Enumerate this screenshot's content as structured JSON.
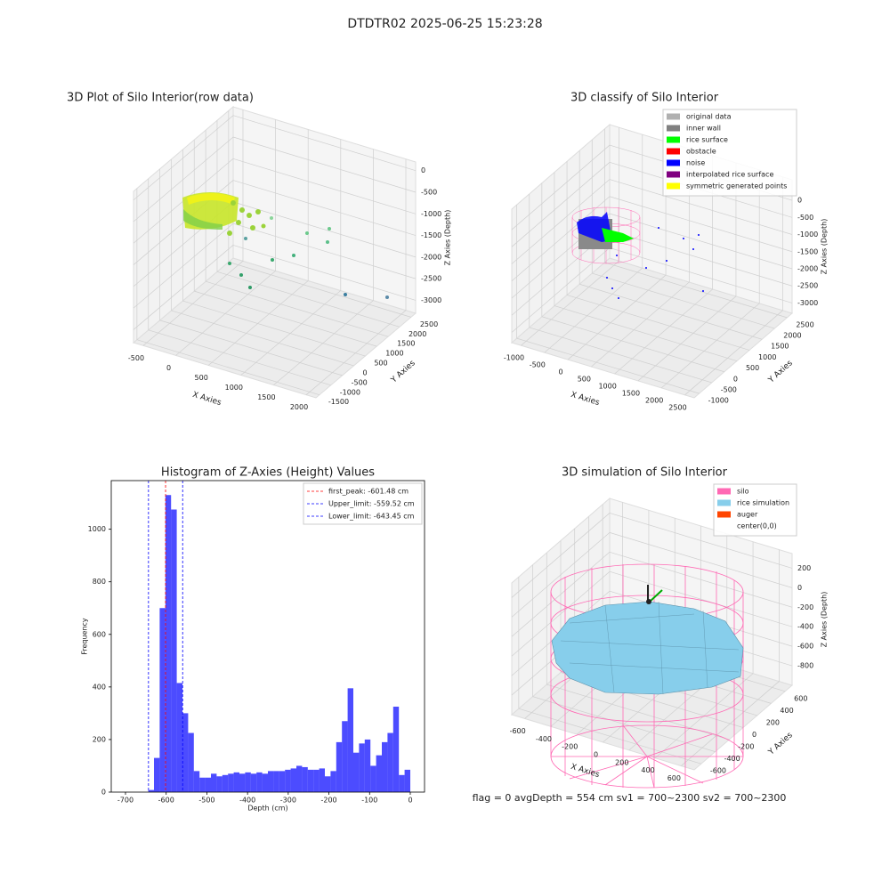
{
  "suptitle": "DTDTR02 2025-06-25 15:23:28",
  "footer": "flag = 0     avgDepth = 554 cm  sv1 = 700~2300  sv2 = 700~2300",
  "chart_data": [
    {
      "type": "scatter3d",
      "title": "3D Plot of Silo Interior(row data)",
      "xlabel": "X Axies",
      "ylabel": "Y Axies",
      "zlabel": "Z Axies (Depth)",
      "xlim": [
        -650,
        2150
      ],
      "ylim": [
        -1650,
        2700
      ],
      "zlim": [
        -3300,
        200
      ],
      "xticks": [
        -500,
        0,
        500,
        1000,
        1500,
        2000
      ],
      "yticks": [
        -1500,
        -1000,
        -500,
        0,
        500,
        1000,
        1500,
        2000,
        2500
      ],
      "zticks": [
        0,
        -500,
        -1000,
        -1500,
        -2000,
        -2500,
        -3000
      ],
      "grid": true
    },
    {
      "type": "scatter3d",
      "title": "3D classify of Silo Interior",
      "xlabel": "X Axies",
      "ylabel": "Y Axies",
      "zlabel": "Z Axies (Depth)",
      "xlim": [
        -1200,
        2700
      ],
      "ylim": [
        -1200,
        2700
      ],
      "zlim": [
        -3300,
        600
      ],
      "xticks": [
        -1000,
        -500,
        0,
        500,
        1000,
        1500,
        2000,
        2500
      ],
      "yticks": [
        -1000,
        -500,
        0,
        500,
        1000,
        1500,
        2000,
        2500
      ],
      "zticks": [
        0,
        -500,
        -1000,
        -1500,
        -2000,
        -2500,
        -3000
      ],
      "grid": true,
      "legend_corner": "upper right",
      "legend": [
        {
          "name": "original data",
          "color": "#b0b0b0"
        },
        {
          "name": "inner wall",
          "color": "#808080"
        },
        {
          "name": "rice surface",
          "color": "#00ff00"
        },
        {
          "name": "obstacle",
          "color": "#ff0000"
        },
        {
          "name": "noise",
          "color": "#0000ff"
        },
        {
          "name": "interpolated rice surface",
          "color": "#800080"
        },
        {
          "name": "symmetric generated points",
          "color": "#ffff00"
        }
      ]
    },
    {
      "type": "histogram",
      "title": "Histogram of Z-Axies (Height) Values",
      "xlabel": "Depth (cm)",
      "ylabel": "Frequency",
      "color": "#0000ff",
      "alpha": 0.7,
      "bins": [
        -644,
        -630,
        -616,
        -602,
        -588,
        -574,
        -560,
        -546,
        -532,
        -518,
        -504,
        -490,
        -476,
        -462,
        -448,
        -434,
        -420,
        -406,
        -392,
        -378,
        -364,
        -350,
        -336,
        -322,
        -308,
        -294,
        -280,
        -266,
        -252,
        -238,
        -224,
        -210,
        -196,
        -182,
        -168,
        -154,
        -140,
        -126,
        -112,
        -98,
        -84,
        -70,
        -56,
        -42,
        -28,
        -14,
        0
      ],
      "values": [
        8,
        130,
        700,
        1130,
        1075,
        415,
        300,
        225,
        80,
        55,
        55,
        70,
        60,
        65,
        70,
        75,
        70,
        75,
        70,
        75,
        70,
        80,
        80,
        80,
        85,
        90,
        100,
        95,
        85,
        85,
        90,
        60,
        80,
        190,
        270,
        395,
        150,
        185,
        200,
        100,
        140,
        190,
        225,
        325,
        65,
        85
      ],
      "xlim": [
        -735,
        35
      ],
      "ylim": [
        0,
        1185
      ],
      "xticks": [
        -700,
        -600,
        -500,
        -400,
        -300,
        -200,
        -100,
        0
      ],
      "yticks": [
        0,
        200,
        400,
        600,
        800,
        1000
      ],
      "legend_corner": "upper right",
      "lines": [
        {
          "name": "first_peak: -601.48 cm",
          "value": -601.48,
          "color": "#ff0000"
        },
        {
          "name": "Upper_limit: -559.52 cm",
          "value": -559.52,
          "color": "#0000ff"
        },
        {
          "name": "Lower_limit: -643.45 cm",
          "value": -643.45,
          "color": "#0000ff"
        }
      ]
    },
    {
      "type": "surface3d",
      "title": "3D simulation of Silo Interior",
      "xlabel": "X Axies",
      "ylabel": "Y Axies",
      "zlabel": "Z Axies (Depth)",
      "xlim": [
        -700,
        700
      ],
      "ylim": [
        -700,
        700
      ],
      "zlim": [
        -1000,
        350
      ],
      "xticks": [
        -600,
        -400,
        -200,
        0,
        200,
        400,
        600
      ],
      "yticks": [
        -600,
        -400,
        -200,
        0,
        200,
        400,
        600
      ],
      "zticks": [
        200,
        0,
        -200,
        -400,
        -600,
        -800
      ],
      "grid": true,
      "legend_corner": "upper right",
      "legend": [
        {
          "name": "silo",
          "color": "#ff69b4"
        },
        {
          "name": "rice simulation",
          "color": "#87ceeb"
        },
        {
          "name": "auger",
          "color": "#ff4500"
        },
        {
          "name": "center(0,0)",
          "color": "#ffffff"
        }
      ]
    }
  ]
}
